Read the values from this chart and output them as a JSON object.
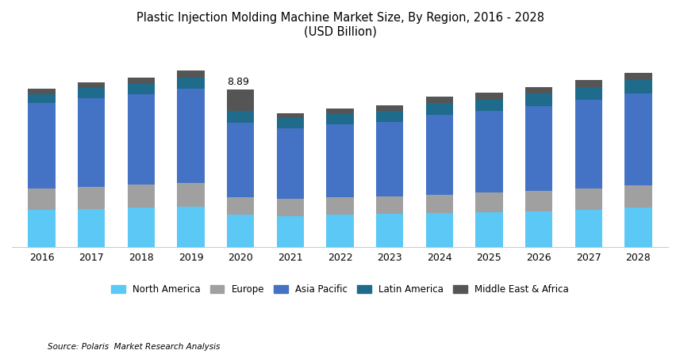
{
  "title_line1": "Plastic Injection Molding Machine Market Size, By Region, 2016 - 2028",
  "title_line2": "(USD Billion)",
  "source": "Source: Polaris  Market Research Analysis",
  "years": [
    2016,
    2017,
    2018,
    2019,
    2020,
    2021,
    2022,
    2023,
    2024,
    2025,
    2026,
    2027,
    2028
  ],
  "regions": [
    "North America",
    "Europe",
    "Asia Pacific",
    "Latin America",
    "Middle East & Africa"
  ],
  "colors": [
    "#5bc8f5",
    "#a0a0a0",
    "#4472c4",
    "#1f6b8c",
    "#555555"
  ],
  "annotation_year": 2020,
  "annotation_text": "8.89",
  "data": {
    "North America": [
      2.1,
      2.15,
      2.2,
      2.25,
      1.8,
      1.75,
      1.8,
      1.85,
      1.9,
      1.95,
      2.0,
      2.1,
      2.2
    ],
    "Europe": [
      1.2,
      1.25,
      1.3,
      1.35,
      1.0,
      0.95,
      1.0,
      1.0,
      1.05,
      1.1,
      1.15,
      1.2,
      1.25
    ],
    "Asia Pacific": [
      4.8,
      5.0,
      5.1,
      5.3,
      4.2,
      4.0,
      4.1,
      4.2,
      4.5,
      4.6,
      4.8,
      5.0,
      5.2
    ],
    "Latin America": [
      0.5,
      0.55,
      0.58,
      0.65,
      0.65,
      0.55,
      0.58,
      0.6,
      0.65,
      0.65,
      0.68,
      0.72,
      0.75
    ],
    "Middle East & Africa": [
      0.3,
      0.33,
      0.36,
      0.4,
      1.24,
      0.28,
      0.3,
      0.32,
      0.35,
      0.37,
      0.38,
      0.4,
      0.42
    ]
  },
  "figsize": [
    8.57,
    4.47
  ],
  "dpi": 100,
  "bar_width": 0.55,
  "ylim": [
    0,
    11
  ],
  "background_color": "#ffffff",
  "legend_ncol": 5
}
